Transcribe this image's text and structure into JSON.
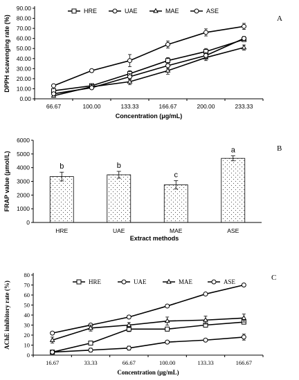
{
  "chart_data": [
    {
      "panel": "A",
      "type": "line",
      "xlabel": "Concentration (μg/mL)",
      "ylabel": "DPPH scavenging rate (%)",
      "categories": [
        "66.67",
        "100.00",
        "133.33",
        "166.67",
        "200.00",
        "233.33"
      ],
      "ylim": [
        0,
        90
      ],
      "yticks": [
        "0.00",
        "10.00",
        "20.00",
        "30.00",
        "40.00",
        "50.00",
        "60.00",
        "70.00",
        "80.00",
        "90.00"
      ],
      "legend": "top",
      "series": [
        {
          "name": "HRE",
          "marker": "square",
          "values": [
            8,
            13,
            25,
            38,
            47,
            59
          ],
          "errors": [
            2,
            1.5,
            3,
            3,
            3,
            2
          ]
        },
        {
          "name": "UAE",
          "marker": "diamond",
          "values": [
            13,
            28,
            38,
            54,
            66,
            72
          ],
          "errors": [
            1.5,
            1.5,
            6,
            3.5,
            3.5,
            3
          ]
        },
        {
          "name": "MAE",
          "marker": "triangle",
          "values": [
            3,
            12,
            17,
            28,
            41,
            51
          ],
          "errors": [
            1.5,
            2,
            3,
            3.5,
            3,
            2.5
          ]
        },
        {
          "name": "ASE",
          "marker": "circle",
          "values": [
            5,
            11,
            22,
            33,
            43,
            60
          ],
          "errors": [
            1.5,
            1.5,
            3,
            3,
            3,
            2
          ]
        }
      ]
    },
    {
      "panel": "B",
      "type": "bar",
      "xlabel": "Extract methods",
      "ylabel": "FRAP value (μmol/L)",
      "categories": [
        "HRE",
        "UAE",
        "MAE",
        "ASE"
      ],
      "values": [
        3350,
        3480,
        2750,
        4680
      ],
      "errors": [
        320,
        250,
        300,
        180
      ],
      "letters": [
        "b",
        "b",
        "c",
        "a"
      ],
      "ylim": [
        0,
        6000
      ],
      "yticks": [
        "0",
        "1000",
        "2000",
        "3000",
        "4000",
        "5000",
        "6000"
      ],
      "xlabel_color": "#e00000"
    },
    {
      "panel": "C",
      "type": "line",
      "xlabel": "Concentration (μg/mL)",
      "ylabel": "AChE inhibitory rate (%)",
      "categories": [
        "16.67",
        "33.33",
        "66.67",
        "100.00",
        "133.33",
        "166.67"
      ],
      "ylim": [
        0,
        80
      ],
      "yticks": [
        "0",
        "10",
        "20",
        "30",
        "40",
        "50",
        "60",
        "70",
        "80"
      ],
      "legend": "top",
      "series": [
        {
          "name": "HRE",
          "marker": "square",
          "values": [
            3,
            12,
            26,
            26,
            30,
            33
          ],
          "errors": [
            1.5,
            2,
            2.5,
            2,
            2,
            2
          ]
        },
        {
          "name": "UAE",
          "marker": "diamond",
          "values": [
            22,
            30,
            38,
            49,
            61,
            70
          ],
          "errors": [
            1.5,
            1.5,
            1.5,
            1.5,
            1.5,
            1.5
          ]
        },
        {
          "name": "MAE",
          "marker": "triangle",
          "values": [
            15,
            27,
            30,
            34,
            35,
            37
          ],
          "errors": [
            3,
            3,
            2.5,
            4,
            4,
            4
          ]
        },
        {
          "name": "ASE",
          "marker": "circle",
          "values": [
            3,
            5,
            7,
            13,
            15,
            18
          ],
          "errors": [
            1.5,
            2,
            2,
            1.5,
            1.5,
            3
          ]
        }
      ]
    }
  ]
}
